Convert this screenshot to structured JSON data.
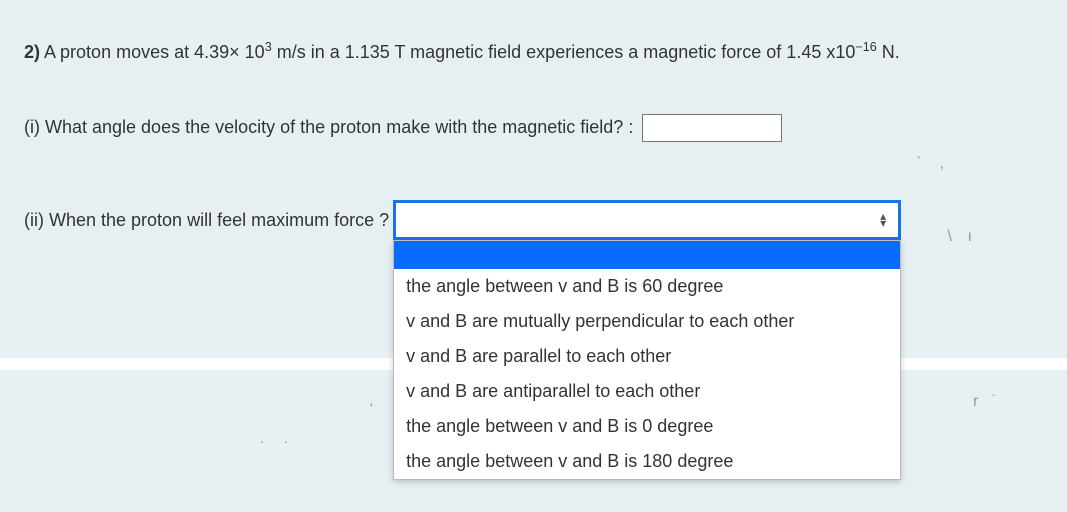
{
  "question": {
    "number": "2)",
    "text_before_sup1": "A proton moves at 4.39× 10",
    "sup1": "3",
    "text_mid": " m/s in a 1.135 T magnetic field experiences a magnetic force of 1.45 x10",
    "sup2": "−16",
    "text_after": " N."
  },
  "part_i": {
    "label": "(i) What angle does the velocity of the proton make with the magnetic field?  :",
    "value": ""
  },
  "part_ii": {
    "label": "(ii) When the proton will feel maximum force ?",
    "selected": "",
    "options": [
      "the angle between v and B is 60 degree",
      "v and B are mutually perpendicular to each other",
      "v and B are parallel to each other",
      "v and B are antiparallel to each other",
      "the angle between v and B is 0 degree",
      "the angle between v and B is 180 degree"
    ]
  },
  "colors": {
    "page_bg": "#e6f0f3",
    "select_border": "#1a73e8",
    "highlight_bg": "#0a6cff",
    "text": "#333333"
  }
}
